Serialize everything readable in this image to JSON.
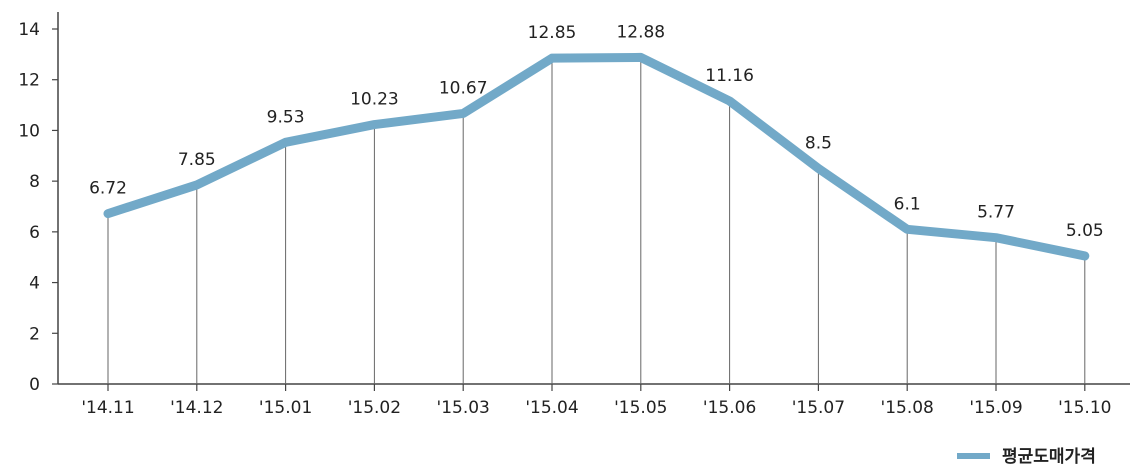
{
  "chart_data": {
    "type": "line",
    "categories": [
      "'14.11",
      "'14.12",
      "'15.01",
      "'15.02",
      "'15.03",
      "'15.04",
      "'15.05",
      "'15.06",
      "'15.07",
      "'15.08",
      "'15.09",
      "'15.10"
    ],
    "series": [
      {
        "name": "평균도매가격",
        "values": [
          6.72,
          7.85,
          9.53,
          10.23,
          10.67,
          12.85,
          12.88,
          11.16,
          8.5,
          6.1,
          5.77,
          5.05
        ],
        "labels": [
          "6.72",
          "7.85",
          "9.53",
          "10.23",
          "10.67",
          "12.85",
          "12.88",
          "11.16",
          "8.5",
          "6.1",
          "5.77",
          "5.05"
        ],
        "color": "#72a9c8"
      }
    ],
    "title": "",
    "xlabel": "",
    "ylabel": "",
    "ylim": [
      0,
      14
    ],
    "yticks": [
      "0",
      "2",
      "4",
      "6",
      "8",
      "10",
      "12",
      "14"
    ],
    "grid": false,
    "drop_lines": true,
    "legend": "bottom-right"
  }
}
